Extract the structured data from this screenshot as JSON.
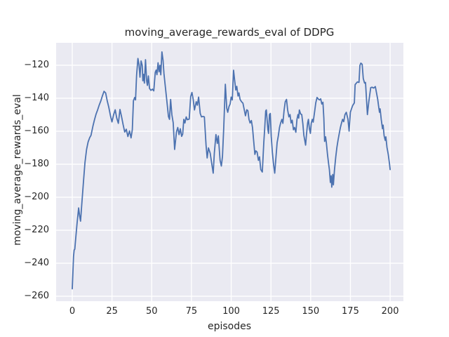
{
  "chart_data": {
    "type": "line",
    "title": "moving_average_rewards_eval of DDPG",
    "xlabel": "episodes",
    "ylabel": "moving_average_rewards_eval",
    "x_ticks": [
      0,
      25,
      50,
      75,
      100,
      125,
      150,
      175,
      200
    ],
    "y_ticks": [
      -120,
      -140,
      -160,
      -180,
      -200,
      -220,
      -240,
      -260
    ],
    "xlim": [
      -10.15,
      208.35
    ],
    "ylim": [
      -263.0,
      -106.4
    ],
    "grid": true,
    "legend_position": "none",
    "colors": {
      "line": "#4C72B0",
      "plot_background": "#EAEAF2",
      "grid": "#FFFFFF",
      "figure_background": "#FFFFFF",
      "text": "#262626"
    },
    "series": [
      {
        "name": "moving_average_rewards_eval",
        "points": [
          [
            0,
            -255.5
          ],
          [
            0.8,
            -236
          ],
          [
            1.2,
            -232
          ],
          [
            1.6,
            -231.5
          ],
          [
            2,
            -227
          ],
          [
            3,
            -216
          ],
          [
            4,
            -206.5
          ],
          [
            4.6,
            -211
          ],
          [
            5.2,
            -214.5
          ],
          [
            6,
            -204
          ],
          [
            7,
            -191
          ],
          [
            8,
            -179
          ],
          [
            9,
            -171
          ],
          [
            10,
            -166.5
          ],
          [
            11,
            -163.8
          ],
          [
            11.8,
            -162.5
          ],
          [
            13,
            -157
          ],
          [
            14,
            -153
          ],
          [
            15,
            -149.5
          ],
          [
            16,
            -147
          ],
          [
            17,
            -144
          ],
          [
            18,
            -141.5
          ],
          [
            19,
            -138.5
          ],
          [
            20,
            -135.8
          ],
          [
            21,
            -136.8
          ],
          [
            22,
            -141.5
          ],
          [
            23,
            -145.5
          ],
          [
            24,
            -150.5
          ],
          [
            25,
            -154.3
          ],
          [
            26,
            -150
          ],
          [
            27,
            -147
          ],
          [
            28,
            -152
          ],
          [
            29,
            -155.2
          ],
          [
            30,
            -146.8
          ],
          [
            31,
            -151
          ],
          [
            32,
            -156
          ],
          [
            33,
            -160.5
          ],
          [
            34,
            -158.8
          ],
          [
            35,
            -163.2
          ],
          [
            36,
            -159.8
          ],
          [
            37,
            -164
          ],
          [
            37.8,
            -159
          ],
          [
            38.5,
            -141.5
          ],
          [
            39.3,
            -139.5
          ],
          [
            39.8,
            -141
          ],
          [
            40.5,
            -126
          ],
          [
            41.3,
            -115.9
          ],
          [
            42,
            -119.5
          ],
          [
            42.6,
            -127.2
          ],
          [
            43.3,
            -117.4
          ],
          [
            44,
            -120
          ],
          [
            44.4,
            -129.4
          ],
          [
            44.9,
            -125.5
          ],
          [
            45.4,
            -130.8
          ],
          [
            46.1,
            -116.6
          ],
          [
            46.8,
            -129.4
          ],
          [
            47.3,
            -132.2
          ],
          [
            47.9,
            -126.5
          ],
          [
            48.6,
            -134
          ],
          [
            49.5,
            -135.2
          ],
          [
            50.5,
            -134.5
          ],
          [
            51.3,
            -135.5
          ],
          [
            52.2,
            -124.3
          ],
          [
            52.8,
            -122.9
          ],
          [
            53.3,
            -125.7
          ],
          [
            54,
            -118.5
          ],
          [
            54.6,
            -124
          ],
          [
            55.2,
            -120
          ],
          [
            55.7,
            -125.8
          ],
          [
            56.4,
            -111.9
          ],
          [
            57.1,
            -117
          ],
          [
            57.7,
            -125
          ],
          [
            58.4,
            -131.5
          ],
          [
            59.4,
            -140.7
          ],
          [
            60.5,
            -151
          ],
          [
            61.2,
            -152.8
          ],
          [
            61.9,
            -140.7
          ],
          [
            62.7,
            -150
          ],
          [
            63.5,
            -154.9
          ],
          [
            64.4,
            -171
          ],
          [
            65.6,
            -160.2
          ],
          [
            66.4,
            -157.7
          ],
          [
            67.2,
            -162
          ],
          [
            68,
            -158.5
          ],
          [
            68.8,
            -163.1
          ],
          [
            69.5,
            -161.7
          ],
          [
            70.2,
            -152.8
          ],
          [
            70.9,
            -155
          ],
          [
            71.7,
            -151.3
          ],
          [
            72.4,
            -153
          ],
          [
            73.6,
            -152.6
          ],
          [
            74.5,
            -139
          ],
          [
            75.3,
            -136.5
          ],
          [
            76.1,
            -140.7
          ],
          [
            76.9,
            -147.1
          ],
          [
            78,
            -142.1
          ],
          [
            78.7,
            -144.2
          ],
          [
            79.5,
            -139.3
          ],
          [
            80.5,
            -149.2
          ],
          [
            81.3,
            -151.3
          ],
          [
            82.3,
            -151
          ],
          [
            83.1,
            -151.3
          ],
          [
            84.2,
            -168.4
          ],
          [
            84.9,
            -176.2
          ],
          [
            85.7,
            -170.1
          ],
          [
            86.8,
            -173.3
          ],
          [
            87.9,
            -180.4
          ],
          [
            88.7,
            -185.4
          ],
          [
            89.4,
            -173.3
          ],
          [
            90.4,
            -162
          ],
          [
            91.3,
            -167.4
          ],
          [
            91.9,
            -162.8
          ],
          [
            93,
            -177.6
          ],
          [
            93.8,
            -181.1
          ],
          [
            94.5,
            -175.3
          ],
          [
            95.3,
            -158
          ],
          [
            96.3,
            -131.5
          ],
          [
            97.2,
            -146
          ],
          [
            97.8,
            -148.5
          ],
          [
            98.6,
            -145
          ],
          [
            99.3,
            -143.5
          ],
          [
            100,
            -139.3
          ],
          [
            100.7,
            -141
          ],
          [
            101.5,
            -123
          ],
          [
            102.3,
            -130
          ],
          [
            102.9,
            -135
          ],
          [
            103.5,
            -132.8
          ],
          [
            104.3,
            -138.6
          ],
          [
            104.9,
            -136.8
          ],
          [
            105.6,
            -140.7
          ],
          [
            106.5,
            -142.1
          ],
          [
            107.4,
            -143
          ],
          [
            108.1,
            -146.4
          ],
          [
            109,
            -150.6
          ],
          [
            109.8,
            -147
          ],
          [
            110.5,
            -147.5
          ],
          [
            111.2,
            -152.8
          ],
          [
            111.9,
            -155
          ],
          [
            112.7,
            -153.5
          ],
          [
            113.4,
            -157.7
          ],
          [
            114.1,
            -165.5
          ],
          [
            114.9,
            -174
          ],
          [
            115.5,
            -171.9
          ],
          [
            116.3,
            -172.6
          ],
          [
            117.1,
            -177.6
          ],
          [
            117.8,
            -175.5
          ],
          [
            118.6,
            -183.2
          ],
          [
            119.6,
            -184.7
          ],
          [
            120.5,
            -166.9
          ],
          [
            121.1,
            -158.4
          ],
          [
            121.7,
            -147.8
          ],
          [
            122.1,
            -147.1
          ],
          [
            122.6,
            -152.8
          ],
          [
            123.1,
            -159.1
          ],
          [
            123.5,
            -161.3
          ],
          [
            124.1,
            -149.9
          ],
          [
            124.6,
            -149.2
          ],
          [
            125.2,
            -163.1
          ],
          [
            125.9,
            -172.6
          ],
          [
            126.7,
            -180.4
          ],
          [
            127.4,
            -185.4
          ],
          [
            128.2,
            -175.5
          ],
          [
            128.9,
            -166.9
          ],
          [
            129.6,
            -163.1
          ],
          [
            130.4,
            -157.7
          ],
          [
            131.1,
            -155
          ],
          [
            131.9,
            -152.8
          ],
          [
            132.5,
            -155.2
          ],
          [
            133.3,
            -147.1
          ],
          [
            134,
            -142.1
          ],
          [
            134.8,
            -140.7
          ],
          [
            135.5,
            -147.1
          ],
          [
            136.3,
            -151.3
          ],
          [
            137,
            -149.9
          ],
          [
            137.7,
            -155
          ],
          [
            138.4,
            -153.3
          ],
          [
            139.2,
            -159.1
          ],
          [
            139.9,
            -157.7
          ],
          [
            140.7,
            -160.6
          ],
          [
            141.4,
            -152.8
          ],
          [
            142,
            -149.9
          ],
          [
            142.5,
            -152
          ],
          [
            142.9,
            -147.1
          ],
          [
            143.7,
            -149.5
          ],
          [
            144.4,
            -149.9
          ],
          [
            145.1,
            -155.5
          ],
          [
            145.7,
            -162.4
          ],
          [
            146.3,
            -165.5
          ],
          [
            146.8,
            -168.4
          ],
          [
            147.4,
            -161.7
          ],
          [
            148.1,
            -155
          ],
          [
            148.6,
            -152.8
          ],
          [
            149.2,
            -158.4
          ],
          [
            149.8,
            -161.3
          ],
          [
            150.4,
            -155
          ],
          [
            151,
            -152.8
          ],
          [
            151.6,
            -154.5
          ],
          [
            152.5,
            -148
          ],
          [
            153.2,
            -142.8
          ],
          [
            154,
            -139.5
          ],
          [
            154.8,
            -140.5
          ],
          [
            155.6,
            -141
          ],
          [
            156.3,
            -140.3
          ],
          [
            157,
            -143.5
          ],
          [
            157.7,
            -142.4
          ],
          [
            158.3,
            -152
          ],
          [
            158.8,
            -166.2
          ],
          [
            159.4,
            -163.4
          ],
          [
            159.9,
            -167
          ],
          [
            160.6,
            -174
          ],
          [
            161.3,
            -179.7
          ],
          [
            161.8,
            -183.2
          ],
          [
            162.4,
            -191
          ],
          [
            162.9,
            -187
          ],
          [
            163.3,
            -193.9
          ],
          [
            163.9,
            -186.2
          ],
          [
            164.3,
            -192.5
          ],
          [
            165,
            -183.2
          ],
          [
            165.8,
            -175.5
          ],
          [
            166.5,
            -169.8
          ],
          [
            167.2,
            -165.5
          ],
          [
            168,
            -161.3
          ],
          [
            168.7,
            -157.7
          ],
          [
            169.4,
            -155
          ],
          [
            170.1,
            -152.8
          ],
          [
            170.8,
            -154.2
          ],
          [
            171.6,
            -149.9
          ],
          [
            172.4,
            -148.5
          ],
          [
            173.5,
            -152.8
          ],
          [
            174.2,
            -159.9
          ],
          [
            175,
            -148.5
          ],
          [
            175.7,
            -146.4
          ],
          [
            176.5,
            -144.3
          ],
          [
            177.5,
            -142.8
          ],
          [
            178,
            -131.7
          ],
          [
            178.6,
            -131
          ],
          [
            179.4,
            -130.1
          ],
          [
            180.4,
            -130.4
          ],
          [
            181,
            -120.1
          ],
          [
            181.6,
            -118.7
          ],
          [
            182.4,
            -119.4
          ],
          [
            183.1,
            -128
          ],
          [
            183.9,
            -130.8
          ],
          [
            184.5,
            -130.4
          ],
          [
            185.7,
            -149.9
          ],
          [
            186.6,
            -142
          ],
          [
            187.8,
            -133.6
          ],
          [
            188.6,
            -133.3
          ],
          [
            189.6,
            -133.8
          ],
          [
            190.7,
            -132.9
          ],
          [
            192.2,
            -140.7
          ],
          [
            192.7,
            -144.3
          ],
          [
            193.3,
            -148.5
          ],
          [
            193.7,
            -146.4
          ],
          [
            194.4,
            -152.8
          ],
          [
            195.2,
            -158.4
          ],
          [
            195.6,
            -156.3
          ],
          [
            196.2,
            -162.7
          ],
          [
            196.9,
            -165.5
          ],
          [
            197.3,
            -163.4
          ],
          [
            198,
            -169.8
          ],
          [
            198.8,
            -174
          ],
          [
            199.5,
            -179
          ],
          [
            200,
            -183.2
          ]
        ]
      }
    ]
  }
}
